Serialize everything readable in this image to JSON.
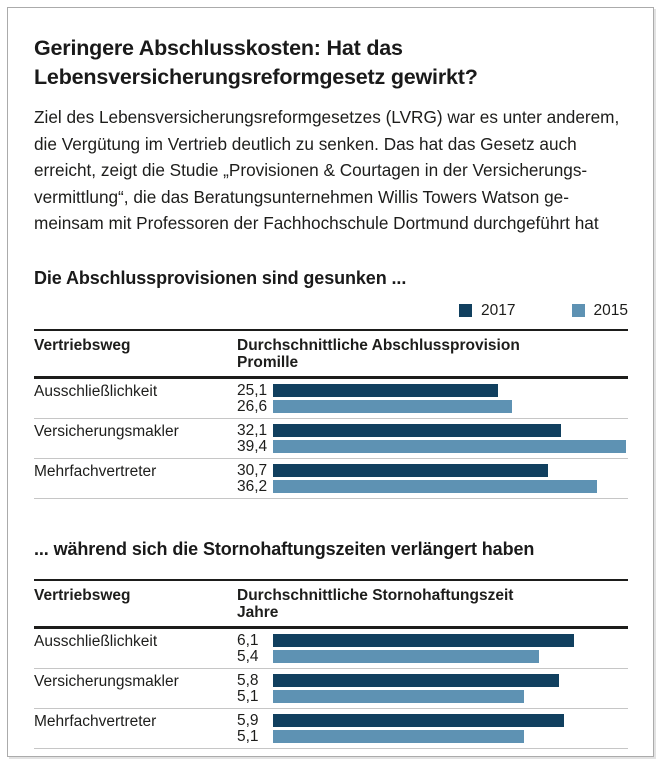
{
  "header": {
    "title_lines": [
      "Geringere Abschlusskosten: Hat das",
      "Lebensversicherungsreformgesetz gewirkt?"
    ],
    "intro_lines": [
      "Ziel des Lebensversicherungsreformgesetzes (LVRG) war es unter anderem,",
      "die Vergütung im Vertrieb deutlich zu senken. Das hat das Gesetz auch",
      "erreicht, zeigt die Studie „Provisionen & Courtagen in der Versicherungs-",
      "vermittlung“, die das Beratungsunternehmen Willis Towers Watson ge-",
      "meinsam mit Professoren der Fachhochschule Dortmund durchgeführt hat"
    ]
  },
  "legend": {
    "items": [
      {
        "label": "2017",
        "color": "#11405f"
      },
      {
        "label": "2015",
        "color": "#5e92b3"
      }
    ]
  },
  "colors": {
    "series_2017": "#11405f",
    "series_2015": "#5e92b3",
    "rule_dark": "#1d1d1b",
    "rule_light": "#c6c6c6"
  },
  "chart_data": [
    {
      "type": "bar",
      "orientation": "horizontal",
      "title": "Die Abschlussprovisionen sind gesunken ...",
      "category_header": "Vertriebsweg",
      "value_header": "Durchschnittliche Abschlussprovision",
      "unit": "Promille",
      "categories": [
        "Ausschließlichkeit",
        "Versicherungsmakler",
        "Mehrfachvertreter"
      ],
      "series": [
        {
          "name": "2017",
          "color": "#11405f",
          "values": [
            25.1,
            32.1,
            30.7
          ]
        },
        {
          "name": "2015",
          "color": "#5e92b3",
          "values": [
            26.6,
            39.4,
            36.2
          ]
        }
      ],
      "xlim": [
        0,
        39.6
      ],
      "grid": false,
      "legend_position": "top-right"
    },
    {
      "type": "bar",
      "orientation": "horizontal",
      "title": "... während sich die Stornohaftungszeiten verlängert haben",
      "category_header": "Vertriebsweg",
      "value_header": "Durchschnittliche Stornohaftungszeit",
      "unit": "Jahre",
      "categories": [
        "Ausschließlichkeit",
        "Versicherungsmakler",
        "Mehrfachvertreter"
      ],
      "series": [
        {
          "name": "2017",
          "color": "#11405f",
          "values": [
            6.1,
            5.8,
            5.9
          ]
        },
        {
          "name": "2015",
          "color": "#5e92b3",
          "values": [
            5.4,
            5.1,
            5.1
          ]
        }
      ],
      "xlim": [
        0,
        7.2
      ],
      "grid": false,
      "legend_position": "none"
    }
  ]
}
